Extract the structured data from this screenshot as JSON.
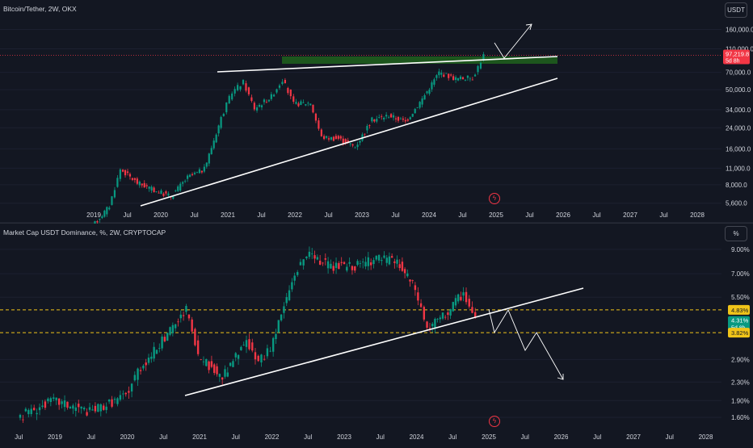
{
  "top": {
    "title": "Bitcoin/Tether, 2W, OKX",
    "scale_button": "USDT",
    "price_ticks": [
      "160,000.0",
      "110,000.0",
      "70,000.0",
      "50,000.0",
      "34,000.0",
      "24,000.0",
      "16,000.0",
      "11,000.0",
      "8,000.0",
      "5,600.0"
    ],
    "price_tick_values": [
      160000,
      110000,
      70000,
      50000,
      34000,
      24000,
      16000,
      11000,
      8000,
      5600
    ],
    "last_price": "97,219.8",
    "countdown": "5d 8h",
    "x_labels": [
      "2019",
      "Jul",
      "2020",
      "Jul",
      "2021",
      "Jul",
      "2022",
      "Jul",
      "2023",
      "Jul",
      "2024",
      "Jul",
      "2025",
      "Jul",
      "2026",
      "Jul",
      "2027",
      "Jul",
      "2028"
    ]
  },
  "bottom": {
    "title": "Market Cap USDT Dominance, %, 2W, CRYPTOCAP",
    "scale_button": "%",
    "pct_ticks": [
      "9.00%",
      "7.00%",
      "5.50%",
      "2.90%",
      "2.30%",
      "1.90%",
      "1.60%"
    ],
    "pct_tick_values": [
      9.0,
      7.0,
      5.5,
      2.9,
      2.3,
      1.9,
      1.6
    ],
    "level_upper": "4.83%",
    "level_lower": "3.82%",
    "current": "4.31%",
    "countdown": "5d 8h",
    "x_labels": [
      "Jul",
      "2019",
      "Jul",
      "2020",
      "Jul",
      "2021",
      "Jul",
      "2022",
      "Jul",
      "2023",
      "Jul",
      "2024",
      "Jul",
      "2025",
      "Jul",
      "2026",
      "Jul",
      "2027",
      "Jul",
      "2028"
    ]
  },
  "colors": {
    "up": "#089981",
    "down": "#f23645",
    "bg": "#131722",
    "zone": "#1e5a1e",
    "dash": "#f0c419",
    "price_badge": "#f23645",
    "current_badge": "#089981"
  },
  "chart_data": [
    {
      "type": "candlestick",
      "title": "Bitcoin/Tether, 2W, OKX",
      "y_scale": "log",
      "ylim": [
        4800,
        175000
      ],
      "approx_closes": [
        {
          "date": "2019-01",
          "close": 3600
        },
        {
          "date": "2019-04",
          "close": 5300
        },
        {
          "date": "2019-06",
          "close": 10800
        },
        {
          "date": "2019-09",
          "close": 8300
        },
        {
          "date": "2019-12",
          "close": 7200
        },
        {
          "date": "2020-03",
          "close": 6400
        },
        {
          "date": "2020-06",
          "close": 9200
        },
        {
          "date": "2020-09",
          "close": 10800
        },
        {
          "date": "2020-12",
          "close": 29000
        },
        {
          "date": "2021-02",
          "close": 48000
        },
        {
          "date": "2021-04",
          "close": 58000
        },
        {
          "date": "2021-06",
          "close": 35000
        },
        {
          "date": "2021-09",
          "close": 44000
        },
        {
          "date": "2021-11",
          "close": 61000
        },
        {
          "date": "2022-01",
          "close": 38000
        },
        {
          "date": "2022-04",
          "close": 39000
        },
        {
          "date": "2022-06",
          "close": 20000
        },
        {
          "date": "2022-09",
          "close": 19500
        },
        {
          "date": "2022-12",
          "close": 16600
        },
        {
          "date": "2023-03",
          "close": 28000
        },
        {
          "date": "2023-06",
          "close": 30500
        },
        {
          "date": "2023-09",
          "close": 27000
        },
        {
          "date": "2023-12",
          "close": 42000
        },
        {
          "date": "2024-03",
          "close": 70000
        },
        {
          "date": "2024-06",
          "close": 62000
        },
        {
          "date": "2024-09",
          "close": 63000
        },
        {
          "date": "2024-11",
          "close": 97219.8
        }
      ]
    },
    {
      "type": "candlestick",
      "title": "Market Cap USDT Dominance, %, 2W, CRYPTOCAP",
      "y_scale": "log",
      "ylim": [
        1.5,
        9.8
      ],
      "approx_closes": [
        {
          "date": "2018-07",
          "close": 1.6
        },
        {
          "date": "2019-01",
          "close": 1.9
        },
        {
          "date": "2019-07",
          "close": 1.7
        },
        {
          "date": "2020-01",
          "close": 2.0
        },
        {
          "date": "2020-03",
          "close": 2.6
        },
        {
          "date": "2020-07",
          "close": 3.5
        },
        {
          "date": "2020-11",
          "close": 4.8
        },
        {
          "date": "2021-01",
          "close": 3.0
        },
        {
          "date": "2021-05",
          "close": 2.4
        },
        {
          "date": "2021-09",
          "close": 3.5
        },
        {
          "date": "2021-11",
          "close": 2.8
        },
        {
          "date": "2022-01",
          "close": 3.3
        },
        {
          "date": "2022-05",
          "close": 7.0
        },
        {
          "date": "2022-07",
          "close": 8.5
        },
        {
          "date": "2022-11",
          "close": 7.5
        },
        {
          "date": "2023-03",
          "close": 7.6
        },
        {
          "date": "2023-07",
          "close": 8.2
        },
        {
          "date": "2023-10",
          "close": 7.9
        },
        {
          "date": "2024-01",
          "close": 6.0
        },
        {
          "date": "2024-03",
          "close": 4.0
        },
        {
          "date": "2024-06",
          "close": 4.6
        },
        {
          "date": "2024-09",
          "close": 5.8
        },
        {
          "date": "2024-11",
          "close": 4.31
        }
      ]
    }
  ]
}
